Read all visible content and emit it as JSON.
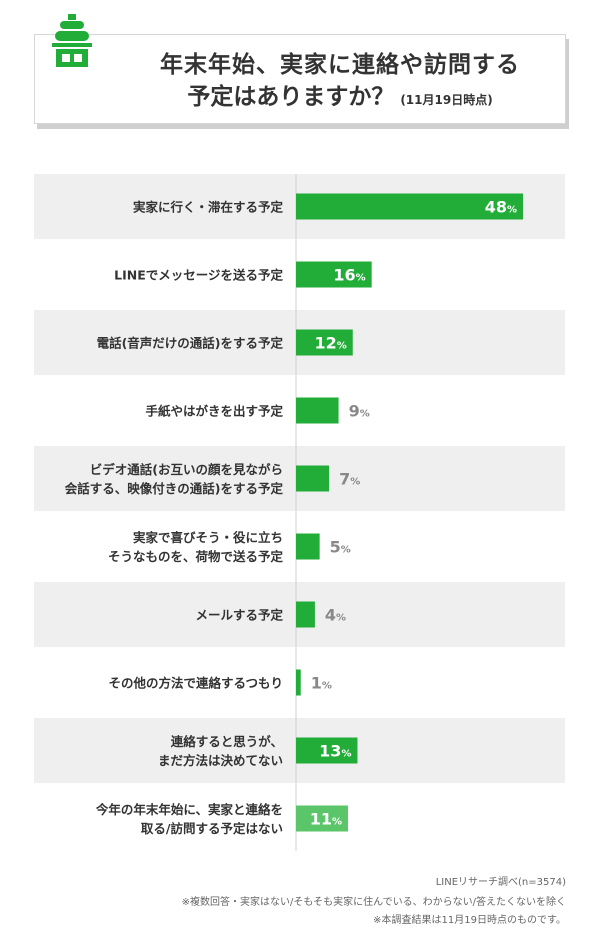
{
  "header": {
    "title_line1": "年末年始、実家に連絡や訪問する",
    "title_line2": "予定はありますか？",
    "title_note": "(11月19日時点)"
  },
  "colors": {
    "bar": "#22ad38",
    "bar_light": "#5bc56a",
    "band": "#efefef",
    "label_dark": "#333333",
    "value_outside": "#888888"
  },
  "chart_data": {
    "type": "bar",
    "orientation": "horizontal",
    "categories": [
      [
        "実家に行く・滞在する予定"
      ],
      [
        "LINEでメッセージを送る予定"
      ],
      [
        "電話(音声だけの通話)をする予定"
      ],
      [
        "手紙やはがきを出す予定"
      ],
      [
        "ビデオ通話(お互いの顔を見ながら",
        "会話する、映像付きの通話)をする予定"
      ],
      [
        "実家で喜びそう・役に立ち",
        "そうなものを、荷物で送る予定"
      ],
      [
        "メールする予定"
      ],
      [
        "その他の方法で連絡するつもり"
      ],
      [
        "連絡すると思うが、",
        "まだ方法は決めてない"
      ],
      [
        "今年の年末年始に、実家と連絡を",
        "取る/訪問する予定はない"
      ]
    ],
    "values": [
      48,
      16,
      12,
      9,
      7,
      5,
      4,
      1,
      13,
      11
    ],
    "unit": "%",
    "ylim": [
      0,
      60
    ]
  },
  "footer": {
    "source": "LINEリサーチ調べ(n=3574)",
    "note1": "※複数回答・実家はない/そもそも実家に住んでいる、わからない/答えたくないを除く",
    "note2": "※本調査結果は11月19日時点のものです。"
  }
}
